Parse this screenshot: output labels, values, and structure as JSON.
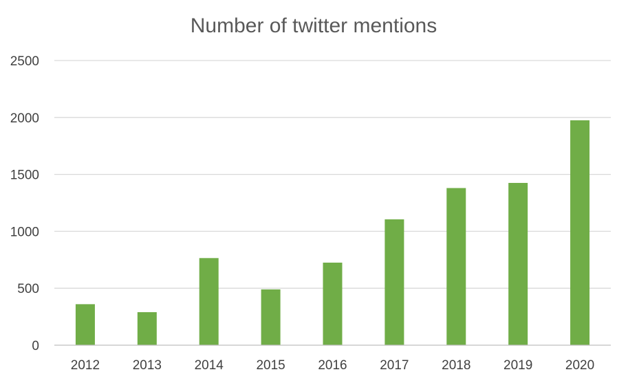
{
  "chart_data": {
    "type": "bar",
    "title": "Number of twitter mentions",
    "xlabel": "",
    "ylabel": "",
    "categories": [
      "2012",
      "2013",
      "2014",
      "2015",
      "2016",
      "2017",
      "2018",
      "2019",
      "2020"
    ],
    "values": [
      360,
      290,
      765,
      490,
      725,
      1105,
      1380,
      1425,
      1975
    ],
    "ylim": [
      0,
      2500
    ],
    "yticks": [
      "0",
      "500",
      "1000",
      "1500",
      "2000",
      "2500"
    ],
    "grid": true,
    "legend": "none",
    "bar_color": "#70ad47"
  }
}
